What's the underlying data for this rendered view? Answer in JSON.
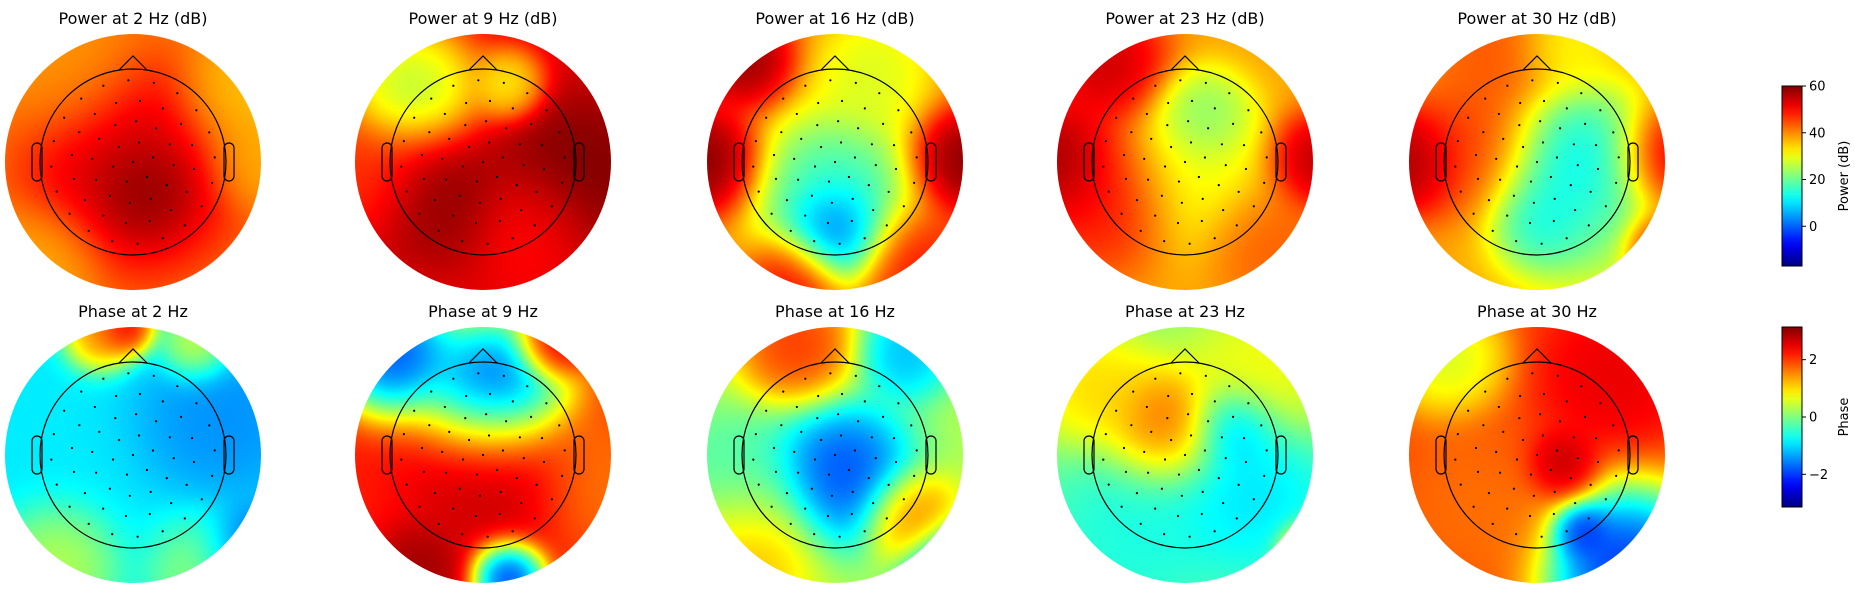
{
  "chart_data": {
    "type": "heatmap",
    "description_kind": "EEG scalp topomaps",
    "rows": [
      {
        "kind": "power",
        "panels": [
          {
            "title": "Power at 2 Hz (dB)",
            "freq": 2
          },
          {
            "title": "Power at 9 Hz (dB)",
            "freq": 9
          },
          {
            "title": "Power at 16 Hz (dB)",
            "freq": 16
          },
          {
            "title": "Power at 23 Hz (dB)",
            "freq": 23
          },
          {
            "title": "Power at 30 Hz (dB)",
            "freq": 30
          }
        ],
        "colorbar": {
          "label": "Power (dB)",
          "ticks": [
            0,
            20,
            40,
            60
          ],
          "ticklabels": [
            "0",
            "20",
            "40",
            "60"
          ],
          "vmin": -17,
          "vmax": 60,
          "colormap": "jet"
        }
      },
      {
        "kind": "phase",
        "panels": [
          {
            "title": "Phase at 2 Hz",
            "freq": 2
          },
          {
            "title": "Phase at 9 Hz",
            "freq": 9
          },
          {
            "title": "Phase at 16 Hz",
            "freq": 16
          },
          {
            "title": "Phase at 23 Hz",
            "freq": 23
          },
          {
            "title": "Phase at 30 Hz",
            "freq": 30
          }
        ],
        "colorbar": {
          "label": "Phase",
          "ticks": [
            -2,
            0,
            2
          ],
          "ticklabels": [
            "−2",
            "0",
            "2"
          ],
          "vmin": -3.14,
          "vmax": 3.14,
          "colormap": "jet"
        }
      }
    ],
    "grid": false,
    "legend": "none"
  }
}
